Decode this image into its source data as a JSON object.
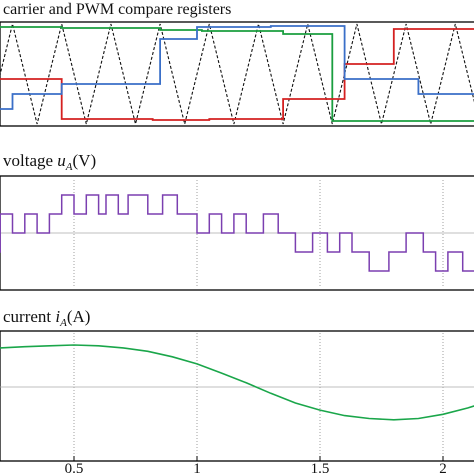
{
  "chart_data": [
    {
      "type": "line",
      "title": "carrier and PWM compare registers",
      "carrier": {
        "y_min": 0,
        "y_max": 1,
        "peaks": 12
      },
      "series": [
        {
          "color": "#1a9e3f",
          "x": [
            -0.05,
            0.02,
            0.02,
            0.45,
            0.45,
            0.85,
            0.85,
            1.02,
            1.02,
            1.35,
            1.35,
            1.55,
            1.55,
            2.2
          ],
          "values": [
            0.95,
            0.95,
            0.97,
            0.97,
            0.96,
            0.96,
            0.94,
            0.94,
            0.93,
            0.93,
            0.9,
            0.9,
            0.03,
            0.03
          ]
        },
        {
          "color": "#d42020",
          "x": [
            -0.05,
            0.03,
            0.03,
            0.45,
            0.45,
            0.82,
            0.82,
            1.05,
            1.05,
            1.35,
            1.35,
            1.6,
            1.6,
            1.8,
            1.8,
            2.2
          ],
          "values": [
            0.62,
            0.62,
            0.45,
            0.45,
            0.05,
            0.05,
            0.04,
            0.04,
            0.05,
            0.05,
            0.25,
            0.25,
            0.6,
            0.6,
            0.95,
            0.95
          ]
        },
        {
          "color": "#3a6fc8",
          "x": [
            -0.05,
            0.1,
            0.1,
            0.25,
            0.25,
            0.45,
            0.45,
            0.85,
            0.85,
            1.0,
            1.0,
            1.3,
            1.3,
            1.6,
            1.6,
            1.9,
            1.9,
            2.2
          ],
          "values": [
            0.02,
            0.02,
            0.15,
            0.15,
            0.3,
            0.3,
            0.4,
            0.4,
            0.85,
            0.85,
            0.97,
            0.97,
            0.98,
            0.98,
            0.45,
            0.45,
            0.3,
            0.3
          ]
        }
      ]
    },
    {
      "type": "line",
      "title": "voltage",
      "symbol": "u",
      "subscript": "A",
      "unit": "(V)",
      "series": [
        {
          "color": "#7b3fb0",
          "x": [
            -0.05,
            0.05,
            0.05,
            0.1,
            0.1,
            0.14,
            0.14,
            0.2,
            0.2,
            0.25,
            0.25,
            0.3,
            0.3,
            0.35,
            0.35,
            0.4,
            0.4,
            0.45,
            0.45,
            0.5,
            0.5,
            0.55,
            0.55,
            0.6,
            0.6,
            0.63,
            0.63,
            0.68,
            0.68,
            0.72,
            0.72,
            0.8,
            0.8,
            0.86,
            0.86,
            0.92,
            0.92,
            1.0,
            1.0,
            1.05,
            1.05,
            1.1,
            1.1,
            1.15,
            1.15,
            1.2,
            1.2,
            1.27,
            1.27,
            1.33,
            1.33,
            1.4,
            1.4,
            1.47,
            1.47,
            1.53,
            1.53,
            1.58,
            1.58,
            1.63,
            1.63,
            1.7,
            1.7,
            1.78,
            1.78,
            1.85,
            1.85,
            1.92,
            1.92,
            1.97,
            1.97,
            2.02,
            2.02,
            2.08,
            2.08,
            2.2
          ],
          "values": [
            0,
            0,
            1,
            1,
            0,
            0,
            -1,
            -1,
            1,
            1,
            0,
            0,
            1,
            1,
            0,
            0,
            1,
            1,
            2,
            2,
            1,
            1,
            2,
            2,
            1,
            1,
            2,
            2,
            1,
            1,
            2,
            2,
            1,
            1,
            2,
            2,
            1,
            1,
            0,
            0,
            1,
            1,
            0,
            0,
            1,
            1,
            0,
            0,
            1,
            1,
            0,
            0,
            -1,
            -1,
            0,
            0,
            -1,
            -1,
            0,
            0,
            -1,
            -1,
            -2,
            -2,
            -1,
            -1,
            0,
            0,
            -1,
            -1,
            -2,
            -2,
            -1,
            -1,
            -2,
            -2
          ]
        }
      ]
    },
    {
      "type": "line",
      "title": "current",
      "symbol": "i",
      "subscript": "A",
      "unit": "(A)",
      "xlabel": "",
      "xticks": [
        "0.5",
        "1",
        "1.5",
        "2"
      ],
      "xtick_values": [
        0.5,
        1,
        1.5,
        2
      ],
      "series": [
        {
          "color": "#1aa64a",
          "x": [
            -0.05,
            0.0,
            0.1,
            0.2,
            0.3,
            0.4,
            0.5,
            0.6,
            0.7,
            0.8,
            0.9,
            1.0,
            1.1,
            1.2,
            1.3,
            1.4,
            1.5,
            1.6,
            1.7,
            1.8,
            1.9,
            2.0,
            2.1,
            2.2
          ],
          "values": [
            0.75,
            0.8,
            0.88,
            0.93,
            0.96,
            0.98,
            1.0,
            0.98,
            0.93,
            0.85,
            0.72,
            0.55,
            0.33,
            0.1,
            -0.15,
            -0.38,
            -0.55,
            -0.68,
            -0.75,
            -0.78,
            -0.75,
            -0.65,
            -0.5,
            -0.32
          ]
        }
      ]
    }
  ]
}
